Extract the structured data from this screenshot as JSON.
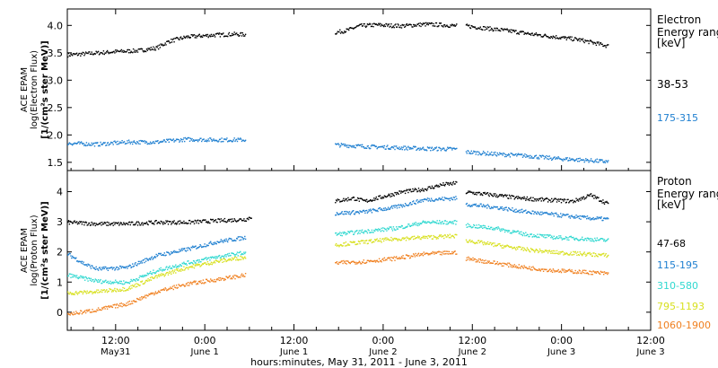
{
  "chart_data": [
    {
      "type": "scatter",
      "panel": "electron",
      "ylabel_lines": [
        "ACE EPAM",
        "log(Electron Flux)",
        "[1/(cm²s ster MeV)]"
      ],
      "ylim": [
        1.35,
        4.3
      ],
      "yticks": [
        "1.5",
        "2.0",
        "2.5",
        "3.0",
        "3.5",
        "4.0"
      ],
      "legend_title_lines": [
        "Electron",
        "Energy range",
        "[keV]"
      ],
      "series": [
        {
          "name": "38-53",
          "color": "#000000",
          "segments": [
            {
              "points": [
                [
                  0,
                  3.47
                ],
                [
                  8,
                  3.5
                ],
                [
                  16,
                  3.53
                ],
                [
                  24,
                  3.55
                ],
                [
                  30,
                  3.6
                ],
                [
                  34,
                  3.72
                ],
                [
                  40,
                  3.8
                ],
                [
                  48,
                  3.83
                ],
                [
                  56,
                  3.85
                ],
                [
                  60,
                  3.84
                ]
              ]
            },
            {
              "points": [
                [
                  90,
                  3.88
                ],
                [
                  94,
                  3.92
                ],
                [
                  98,
                  4.0
                ],
                [
                  104,
                  4.02
                ],
                [
                  112,
                  4.0
                ],
                [
                  120,
                  4.03
                ],
                [
                  126,
                  4.02
                ],
                [
                  131,
                  4.0
                ]
              ]
            },
            {
              "points": [
                [
                  134,
                  4.0
                ],
                [
                  142,
                  3.95
                ],
                [
                  150,
                  3.9
                ],
                [
                  156,
                  3.85
                ],
                [
                  164,
                  3.8
                ],
                [
                  172,
                  3.75
                ],
                [
                  178,
                  3.68
                ],
                [
                  182,
                  3.63
                ]
              ]
            }
          ]
        },
        {
          "name": "175-315",
          "color": "#1e7fd0",
          "segments": [
            {
              "points": [
                [
                  0,
                  1.86
                ],
                [
                  10,
                  1.84
                ],
                [
                  20,
                  1.88
                ],
                [
                  30,
                  1.88
                ],
                [
                  40,
                  1.93
                ],
                [
                  50,
                  1.92
                ],
                [
                  60,
                  1.92
                ]
              ]
            },
            {
              "points": [
                [
                  90,
                  1.83
                ],
                [
                  100,
                  1.8
                ],
                [
                  110,
                  1.78
                ],
                [
                  120,
                  1.76
                ],
                [
                  131,
                  1.75
                ]
              ]
            },
            {
              "points": [
                [
                  134,
                  1.7
                ],
                [
                  144,
                  1.66
                ],
                [
                  154,
                  1.63
                ],
                [
                  164,
                  1.58
                ],
                [
                  174,
                  1.55
                ],
                [
                  182,
                  1.52
                ]
              ]
            }
          ]
        }
      ]
    },
    {
      "type": "scatter",
      "panel": "proton",
      "ylabel_lines": [
        "ACE EPAM",
        "log(Proton Flux)",
        "[1/(cm²s ster MeV)]"
      ],
      "ylim": [
        -0.6,
        4.7
      ],
      "yticks": [
        "0",
        "1",
        "2",
        "3",
        "4"
      ],
      "legend_title_lines": [
        "Proton",
        "Energy range",
        "[keV]"
      ],
      "series": [
        {
          "name": "47-68",
          "color": "#000000",
          "segments": [
            {
              "points": [
                [
                  0,
                  3.0
                ],
                [
                  10,
                  2.95
                ],
                [
                  20,
                  2.95
                ],
                [
                  30,
                  3.0
                ],
                [
                  40,
                  3.0
                ],
                [
                  50,
                  3.05
                ],
                [
                  60,
                  3.1
                ],
                [
                  62,
                  3.2
                ]
              ]
            },
            {
              "points": [
                [
                  90,
                  3.7
                ],
                [
                  96,
                  3.8
                ],
                [
                  100,
                  3.7
                ],
                [
                  106,
                  3.85
                ],
                [
                  112,
                  4.0
                ],
                [
                  120,
                  4.1
                ],
                [
                  126,
                  4.25
                ],
                [
                  131,
                  4.3
                ]
              ]
            },
            {
              "points": [
                [
                  134,
                  4.0
                ],
                [
                  144,
                  3.9
                ],
                [
                  152,
                  3.8
                ],
                [
                  160,
                  3.75
                ],
                [
                  170,
                  3.7
                ],
                [
                  176,
                  3.9
                ],
                [
                  182,
                  3.6
                ]
              ]
            }
          ]
        },
        {
          "name": "115-195",
          "color": "#1e7fd0",
          "segments": [
            {
              "points": [
                [
                  0,
                  1.95
                ],
                [
                  6,
                  1.6
                ],
                [
                  10,
                  1.45
                ],
                [
                  20,
                  1.5
                ],
                [
                  30,
                  1.9
                ],
                [
                  40,
                  2.1
                ],
                [
                  50,
                  2.35
                ],
                [
                  60,
                  2.5
                ]
              ]
            },
            {
              "points": [
                [
                  90,
                  3.3
                ],
                [
                  100,
                  3.35
                ],
                [
                  110,
                  3.5
                ],
                [
                  120,
                  3.75
                ],
                [
                  131,
                  3.8
                ]
              ]
            },
            {
              "points": [
                [
                  134,
                  3.6
                ],
                [
                  144,
                  3.5
                ],
                [
                  154,
                  3.35
                ],
                [
                  164,
                  3.25
                ],
                [
                  174,
                  3.15
                ],
                [
                  182,
                  3.1
                ]
              ]
            }
          ]
        },
        {
          "name": "310-580",
          "color": "#30d8d0",
          "segments": [
            {
              "points": [
                [
                  0,
                  1.25
                ],
                [
                  10,
                  1.05
                ],
                [
                  20,
                  1.0
                ],
                [
                  30,
                  1.4
                ],
                [
                  40,
                  1.65
                ],
                [
                  50,
                  1.85
                ],
                [
                  60,
                  2.0
                ]
              ]
            },
            {
              "points": [
                [
                  90,
                  2.6
                ],
                [
                  100,
                  2.7
                ],
                [
                  110,
                  2.8
                ],
                [
                  120,
                  3.0
                ],
                [
                  131,
                  3.0
                ]
              ]
            },
            {
              "points": [
                [
                  134,
                  2.9
                ],
                [
                  144,
                  2.8
                ],
                [
                  154,
                  2.6
                ],
                [
                  164,
                  2.5
                ],
                [
                  174,
                  2.45
                ],
                [
                  182,
                  2.4
                ]
              ]
            }
          ]
        },
        {
          "name": "795-1193",
          "color": "#d8e020",
          "segments": [
            {
              "points": [
                [
                  0,
                  0.65
                ],
                [
                  10,
                  0.7
                ],
                [
                  20,
                  0.8
                ],
                [
                  30,
                  1.2
                ],
                [
                  40,
                  1.5
                ],
                [
                  50,
                  1.7
                ],
                [
                  60,
                  1.85
                ]
              ]
            },
            {
              "points": [
                [
                  90,
                  2.25
                ],
                [
                  100,
                  2.35
                ],
                [
                  110,
                  2.45
                ],
                [
                  120,
                  2.5
                ],
                [
                  131,
                  2.55
                ]
              ]
            },
            {
              "points": [
                [
                  134,
                  2.4
                ],
                [
                  144,
                  2.25
                ],
                [
                  154,
                  2.1
                ],
                [
                  164,
                  2.0
                ],
                [
                  174,
                  1.95
                ],
                [
                  182,
                  1.9
                ]
              ]
            }
          ]
        },
        {
          "name": "1060-1900",
          "color": "#f08020",
          "segments": [
            {
              "points": [
                [
                  0,
                  -0.05
                ],
                [
                  10,
                  0.1
                ],
                [
                  20,
                  0.3
                ],
                [
                  30,
                  0.7
                ],
                [
                  40,
                  0.95
                ],
                [
                  50,
                  1.1
                ],
                [
                  60,
                  1.25
                ]
              ]
            },
            {
              "points": [
                [
                  90,
                  1.65
                ],
                [
                  100,
                  1.7
                ],
                [
                  110,
                  1.8
                ],
                [
                  120,
                  1.95
                ],
                [
                  131,
                  2.0
                ]
              ]
            },
            {
              "points": [
                [
                  134,
                  1.8
                ],
                [
                  144,
                  1.65
                ],
                [
                  154,
                  1.5
                ],
                [
                  164,
                  1.4
                ],
                [
                  174,
                  1.35
                ],
                [
                  182,
                  1.3
                ]
              ]
            }
          ]
        }
      ]
    }
  ],
  "x_axis": {
    "ticks": [
      {
        "hours": 12,
        "time": "12:00",
        "day": "May31"
      },
      {
        "hours": 24,
        "time": "0:00",
        "day": "June 1"
      },
      {
        "hours": 36,
        "time": "12:00",
        "day": "June 1"
      },
      {
        "hours": 48,
        "time": "0:00",
        "day": "June 2"
      },
      {
        "hours": 60,
        "time": "12:00",
        "day": "June 2"
      },
      {
        "hours": 72,
        "time": "0:00",
        "day": "June 3"
      },
      {
        "hours": 84,
        "time": "12:00",
        "day": "June 3"
      }
    ],
    "range_hours": [
      5.5,
      84
    ],
    "data_unit_per_hour": 2.5,
    "data_offset_hours": 5.5,
    "xlabel": "hours:minutes, May 31, 2011 - June  3, 2011"
  }
}
